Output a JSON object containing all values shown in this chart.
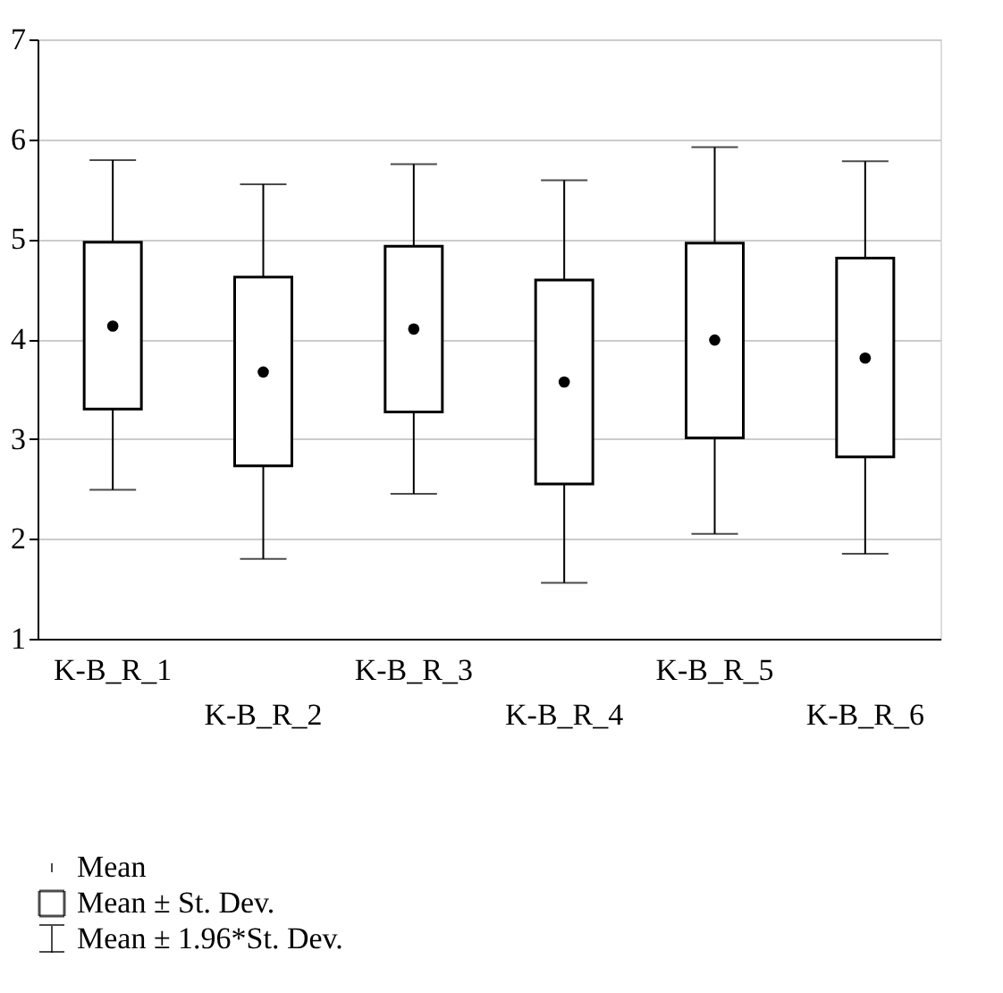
{
  "chart_data": {
    "type": "box",
    "categories": [
      "K-B_R_1",
      "K-B_R_2",
      "K-B_R_3",
      "K-B_R_4",
      "K-B_R_5",
      "K-B_R_6"
    ],
    "boxes": [
      {
        "low": 2.49,
        "q1": 3.3,
        "q3": 4.97,
        "high": 5.79,
        "mean": 4.13
      },
      {
        "low": 1.8,
        "q1": 2.73,
        "q3": 4.62,
        "high": 5.55,
        "mean": 3.67
      },
      {
        "low": 2.45,
        "q1": 3.27,
        "q3": 4.93,
        "high": 5.75,
        "mean": 4.1
      },
      {
        "low": 1.56,
        "q1": 2.55,
        "q3": 4.59,
        "high": 5.59,
        "mean": 3.57
      },
      {
        "low": 2.05,
        "q1": 3.01,
        "q3": 4.96,
        "high": 5.92,
        "mean": 3.99
      },
      {
        "low": 1.85,
        "q1": 2.82,
        "q3": 4.81,
        "high": 5.78,
        "mean": 3.81
      }
    ],
    "ylim": [
      1,
      7
    ],
    "yticks": [
      1,
      2,
      3,
      4,
      5,
      6,
      7
    ],
    "grid": "y",
    "annotations": [
      "Mean",
      "Mean ± St. Dev.",
      "Mean ± 1.96*St. Dev."
    ]
  }
}
